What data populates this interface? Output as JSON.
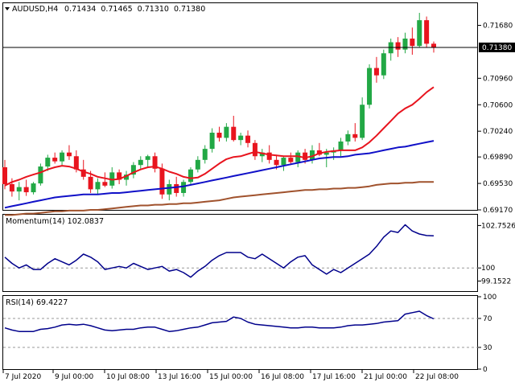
{
  "chart_data": [
    {
      "type": "candlestick",
      "symbol": "AUDUSD",
      "timeframe": "H4",
      "title_values": [
        "0.71434",
        "0.71465",
        "0.71310",
        "0.71380"
      ],
      "current_price": 0.7138,
      "current_price_label": "0.71380",
      "ylim": [
        0.6917,
        0.7197
      ],
      "y_ticks": [
        "0.71680",
        "0.70960",
        "0.70600",
        "0.70240",
        "0.69890",
        "0.69530",
        "0.69170"
      ],
      "x_ticks": [
        "7 Jul 2020",
        "9 Jul 00:00",
        "10 Jul 08:00",
        "13 Jul 16:00",
        "15 Jul 00:00",
        "16 Jul 08:00",
        "17 Jul 16:00",
        "21 Jul 00:00",
        "22 Jul 08:00"
      ],
      "candles": [
        [
          0.6975,
          0.6985,
          0.6945,
          0.6952
        ],
        [
          0.6952,
          0.696,
          0.6935,
          0.6942
        ],
        [
          0.6942,
          0.6955,
          0.693,
          0.6948
        ],
        [
          0.6948,
          0.6958,
          0.6936,
          0.6941
        ],
        [
          0.6941,
          0.6955,
          0.6938,
          0.6953
        ],
        [
          0.6953,
          0.698,
          0.695,
          0.6976
        ],
        [
          0.6976,
          0.6992,
          0.697,
          0.6988
        ],
        [
          0.6988,
          0.6995,
          0.698,
          0.6983
        ],
        [
          0.6983,
          0.6998,
          0.6978,
          0.6995
        ],
        [
          0.6995,
          0.7005,
          0.6985,
          0.699
        ],
        [
          0.699,
          0.6998,
          0.6968,
          0.6972
        ],
        [
          0.6972,
          0.6985,
          0.6958,
          0.6962
        ],
        [
          0.6962,
          0.697,
          0.694,
          0.6945
        ],
        [
          0.6945,
          0.696,
          0.6938,
          0.6955
        ],
        [
          0.6955,
          0.6968,
          0.6948,
          0.695
        ],
        [
          0.695,
          0.6975,
          0.6946,
          0.6968
        ],
        [
          0.6968,
          0.6972,
          0.6952,
          0.6958
        ],
        [
          0.6958,
          0.697,
          0.695,
          0.6965
        ],
        [
          0.6965,
          0.6982,
          0.696,
          0.6978
        ],
        [
          0.6978,
          0.699,
          0.6972,
          0.6985
        ],
        [
          0.6985,
          0.6992,
          0.6975,
          0.699
        ],
        [
          0.699,
          0.6995,
          0.6968,
          0.6973
        ],
        [
          0.6973,
          0.698,
          0.6932,
          0.6938
        ],
        [
          0.6938,
          0.6958,
          0.693,
          0.6952
        ],
        [
          0.6952,
          0.6962,
          0.6935,
          0.694
        ],
        [
          0.694,
          0.6958,
          0.6935,
          0.6955
        ],
        [
          0.6955,
          0.6975,
          0.695,
          0.6972
        ],
        [
          0.6972,
          0.699,
          0.6968,
          0.6985
        ],
        [
          0.6985,
          0.7005,
          0.698,
          0.7
        ],
        [
          0.7,
          0.7028,
          0.6995,
          0.7022
        ],
        [
          0.7022,
          0.703,
          0.701,
          0.7015
        ],
        [
          0.7015,
          0.7035,
          0.701,
          0.703
        ],
        [
          0.703,
          0.7045,
          0.701,
          0.7012
        ],
        [
          0.7012,
          0.7022,
          0.7005,
          0.7018
        ],
        [
          0.7018,
          0.7025,
          0.7002,
          0.7008
        ],
        [
          0.7008,
          0.7012,
          0.6985,
          0.699
        ],
        [
          0.699,
          0.7,
          0.6982,
          0.6995
        ],
        [
          0.6995,
          0.7005,
          0.698,
          0.6985
        ],
        [
          0.6985,
          0.6992,
          0.6972,
          0.6978
        ],
        [
          0.6978,
          0.699,
          0.697,
          0.6988
        ],
        [
          0.6988,
          0.6995,
          0.6978,
          0.6982
        ],
        [
          0.6982,
          0.6998,
          0.6975,
          0.6995
        ],
        [
          0.6995,
          0.7,
          0.698,
          0.6985
        ],
        [
          0.6985,
          0.7005,
          0.698,
          0.6998
        ],
        [
          0.6998,
          0.7008,
          0.699,
          0.6992
        ],
        [
          0.6992,
          0.7,
          0.6975,
          0.6995
        ],
        [
          0.6995,
          0.7002,
          0.6985,
          0.6998
        ],
        [
          0.6998,
          0.7015,
          0.699,
          0.701
        ],
        [
          0.701,
          0.7025,
          0.7005,
          0.702
        ],
        [
          0.702,
          0.7035,
          0.701,
          0.7015
        ],
        [
          0.7015,
          0.707,
          0.7012,
          0.706
        ],
        [
          0.706,
          0.7115,
          0.7055,
          0.711
        ],
        [
          0.711,
          0.7125,
          0.709,
          0.71
        ],
        [
          0.71,
          0.7135,
          0.7095,
          0.713
        ],
        [
          0.713,
          0.715,
          0.712,
          0.7145
        ],
        [
          0.7145,
          0.7152,
          0.7125,
          0.7135
        ],
        [
          0.7135,
          0.7158,
          0.713,
          0.715
        ],
        [
          0.715,
          0.7165,
          0.7128,
          0.714
        ],
        [
          0.714,
          0.7185,
          0.7138,
          0.7175
        ],
        [
          0.7175,
          0.718,
          0.7138,
          0.7143
        ],
        [
          0.7143,
          0.7146,
          0.7131,
          0.7138
        ]
      ],
      "ma_fast": [
        0.695,
        0.6955,
        0.6958,
        0.6962,
        0.6965,
        0.6968,
        0.6972,
        0.6975,
        0.6977,
        0.6976,
        0.6973,
        0.6969,
        0.6966,
        0.6962,
        0.696,
        0.6958,
        0.6959,
        0.6963,
        0.6968,
        0.6972,
        0.6975,
        0.6976,
        0.6973,
        0.6969,
        0.6966,
        0.6962,
        0.696,
        0.6961,
        0.6966,
        0.6973,
        0.698,
        0.6986,
        0.6989,
        0.699,
        0.6993,
        0.6996,
        0.6994,
        0.6992,
        0.6991,
        0.699,
        0.699,
        0.699,
        0.6988,
        0.699,
        0.6994,
        0.6996,
        0.6997,
        0.6998,
        0.6998,
        0.6998,
        0.7002,
        0.7009,
        0.7018,
        0.7028,
        0.7038,
        0.7048,
        0.7055,
        0.706,
        0.7068,
        0.7077,
        0.7084
      ],
      "ma_mid": [
        0.692,
        0.6922,
        0.6924,
        0.6926,
        0.6928,
        0.693,
        0.6932,
        0.6934,
        0.6935,
        0.6936,
        0.6937,
        0.6938,
        0.6938,
        0.6938,
        0.6939,
        0.694,
        0.694,
        0.6941,
        0.6942,
        0.6943,
        0.6944,
        0.6945,
        0.6946,
        0.6947,
        0.6948,
        0.6949,
        0.6951,
        0.6953,
        0.6955,
        0.6957,
        0.6959,
        0.6961,
        0.6963,
        0.6965,
        0.6967,
        0.6969,
        0.6971,
        0.6973,
        0.6975,
        0.6977,
        0.6979,
        0.6981,
        0.6983,
        0.6985,
        0.6987,
        0.6988,
        0.6989,
        0.6989,
        0.699,
        0.6992,
        0.6993,
        0.6994,
        0.6996,
        0.6998,
        0.7,
        0.7002,
        0.7003,
        0.7005,
        0.7007,
        0.7009,
        0.7011
      ],
      "ma_slow": [
        0.691,
        0.691,
        0.6911,
        0.6912,
        0.6912,
        0.6913,
        0.6914,
        0.6915,
        0.6915,
        0.6916,
        0.6916,
        0.6916,
        0.6917,
        0.6917,
        0.6918,
        0.6919,
        0.692,
        0.6921,
        0.6922,
        0.6923,
        0.6923,
        0.6924,
        0.6924,
        0.6925,
        0.6925,
        0.6926,
        0.6926,
        0.6927,
        0.6928,
        0.6929,
        0.693,
        0.6932,
        0.6934,
        0.6935,
        0.6936,
        0.6937,
        0.6938,
        0.6939,
        0.694,
        0.6941,
        0.6942,
        0.6943,
        0.6944,
        0.6944,
        0.6945,
        0.6945,
        0.6946,
        0.6946,
        0.6947,
        0.6947,
        0.6948,
        0.6949,
        0.6951,
        0.6952,
        0.6953,
        0.6953,
        0.6954,
        0.6954,
        0.6955,
        0.6955,
        0.6955
      ],
      "colors": {
        "bull": "#22a845",
        "bear": "#e8141e",
        "ma_fast": "#e8141e",
        "ma_mid": "#1010c8",
        "ma_slow": "#a0522d",
        "price_box": "#000000"
      }
    },
    {
      "type": "line",
      "name": "Momentum(14)",
      "value_label": "102.0837",
      "ylim": [
        98.5,
        103.4
      ],
      "y_ticks": [
        "102.7526",
        "100",
        "99.1522"
      ],
      "level": 100,
      "color": "#00008b",
      "values": [
        100.7,
        100.3,
        100.0,
        100.2,
        99.9,
        99.9,
        100.3,
        100.6,
        100.4,
        100.2,
        100.5,
        100.9,
        100.7,
        100.4,
        99.9,
        100.0,
        100.1,
        100.0,
        100.3,
        100.1,
        99.9,
        100.0,
        100.1,
        99.8,
        99.9,
        99.7,
        99.4,
        99.8,
        100.1,
        100.5,
        100.8,
        101.0,
        101.0,
        101.0,
        100.7,
        100.6,
        100.9,
        100.6,
        100.3,
        100.0,
        100.4,
        100.7,
        100.8,
        100.2,
        99.9,
        99.6,
        99.9,
        99.7,
        100.0,
        100.3,
        100.6,
        100.9,
        101.4,
        102.0,
        102.4,
        102.3,
        102.8,
        102.4,
        102.2,
        102.1,
        102.08
      ]
    },
    {
      "type": "line",
      "name": "RSI(14)",
      "value_label": "69.4227",
      "ylim": [
        0,
        100
      ],
      "y_ticks": [
        "100",
        "70",
        "30",
        "0"
      ],
      "level_lines": [
        70,
        30
      ],
      "color": "#00008b",
      "values": [
        57,
        54,
        52,
        52,
        52,
        55,
        56,
        58,
        61,
        62,
        61,
        62,
        60,
        57,
        54,
        53,
        54,
        55,
        55,
        57,
        58,
        58,
        55,
        52,
        53,
        55,
        57,
        58,
        61,
        64,
        65,
        66,
        72,
        70,
        65,
        62,
        61,
        60,
        59,
        58,
        57,
        57,
        58,
        58,
        57,
        57,
        57,
        58,
        60,
        61,
        61,
        62,
        63,
        65,
        66,
        67,
        76,
        78,
        80,
        74,
        69.42
      ]
    }
  ]
}
